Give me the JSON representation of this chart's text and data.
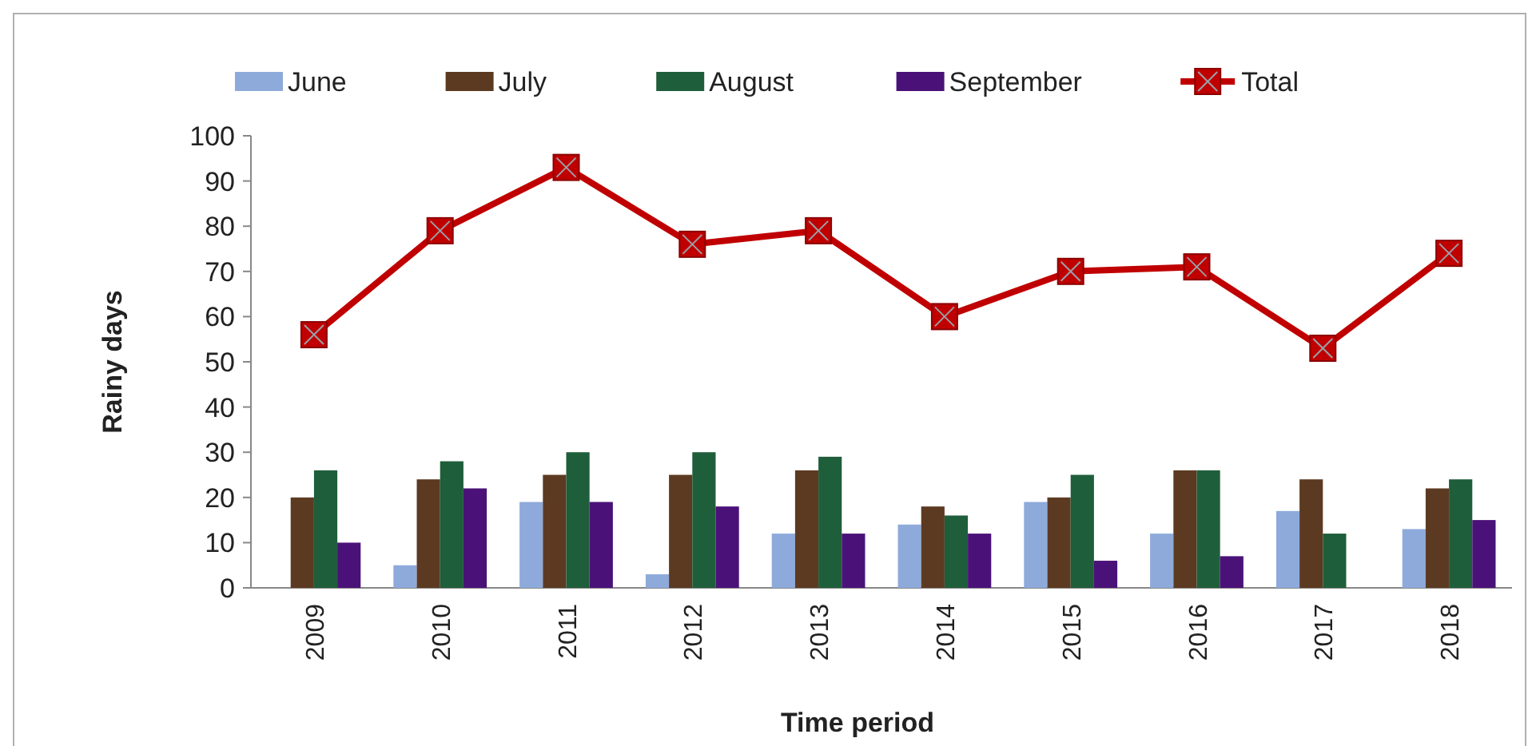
{
  "chart_data": {
    "type": "bar",
    "xlabel": "Time period",
    "ylabel": "Rainy days",
    "categories": [
      "2009",
      "2010",
      "2011",
      "2012",
      "2013",
      "2014",
      "2015",
      "2016",
      "2017",
      "2018"
    ],
    "series": [
      {
        "name": "June",
        "color": "#8eaadb",
        "values": [
          0,
          5,
          19,
          3,
          12,
          14,
          19,
          12,
          17,
          13
        ]
      },
      {
        "name": "July",
        "color": "#5c3a21",
        "values": [
          20,
          24,
          25,
          25,
          26,
          18,
          20,
          26,
          24,
          22
        ]
      },
      {
        "name": "August",
        "color": "#1f5e3a",
        "values": [
          26,
          28,
          30,
          30,
          29,
          16,
          25,
          26,
          12,
          24
        ]
      },
      {
        "name": "September",
        "color": "#4a1278",
        "values": [
          10,
          22,
          19,
          18,
          12,
          12,
          6,
          7,
          0,
          15
        ]
      },
      {
        "name": "Total",
        "type": "line",
        "color": "#c00000",
        "values": [
          56,
          79,
          93,
          76,
          79,
          60,
          70,
          71,
          53,
          74
        ]
      }
    ],
    "ylim": [
      0,
      100
    ],
    "yticks": [
      0,
      10,
      20,
      30,
      40,
      50,
      60,
      70,
      80,
      90,
      100
    ],
    "legend": "top",
    "marker": "square",
    "line_style": "solid"
  }
}
